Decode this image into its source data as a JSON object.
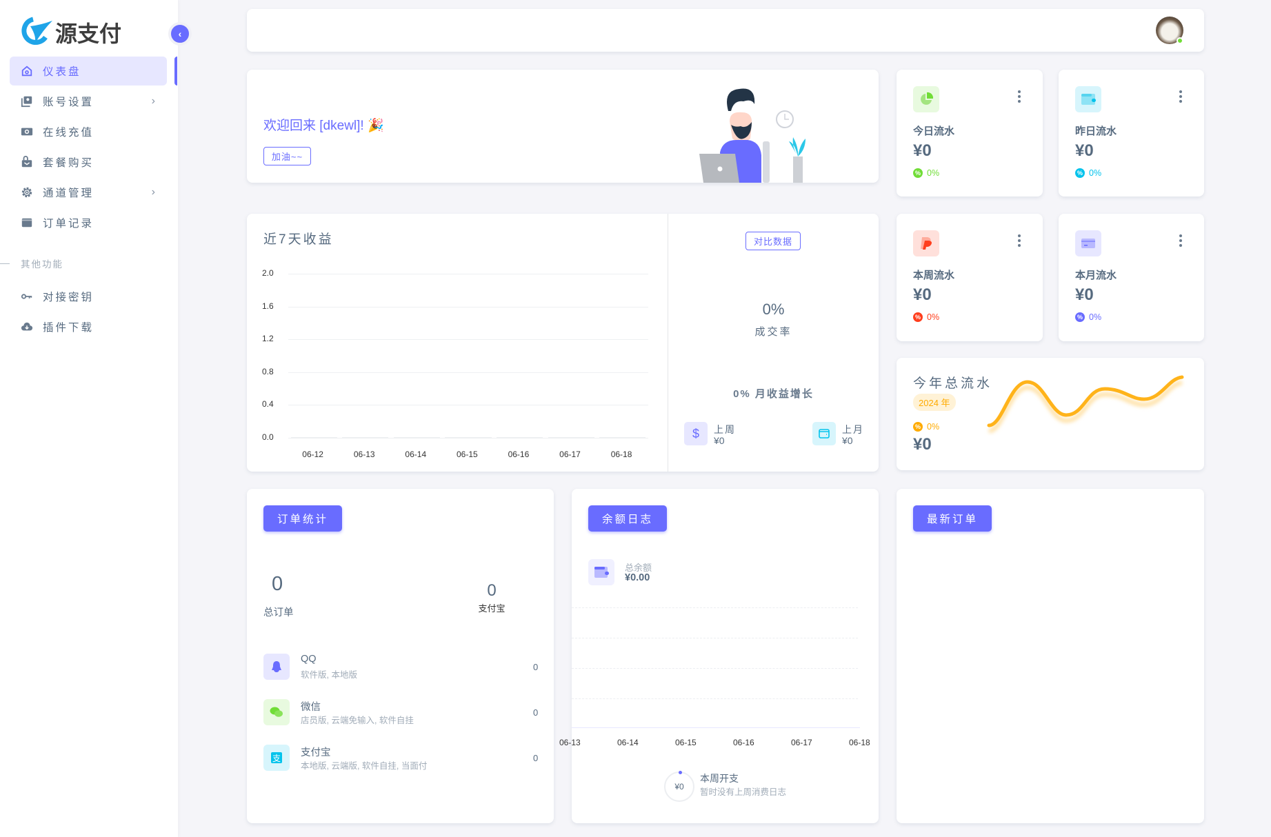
{
  "sidebar": {
    "logo_text": "源支付",
    "items": [
      {
        "label": "仪表盘",
        "icon": "home-icon",
        "active": true
      },
      {
        "label": "账号设置",
        "icon": "account-icon",
        "has_children": true
      },
      {
        "label": "在线充值",
        "icon": "money-icon"
      },
      {
        "label": "套餐购买",
        "icon": "shopping-bag-icon"
      },
      {
        "label": "通道管理",
        "icon": "gear-icon",
        "has_children": true
      },
      {
        "label": "订单记录",
        "icon": "wallet-icon"
      }
    ],
    "section_label": "其他功能",
    "other_items": [
      {
        "label": "对接密钥",
        "icon": "key-icon"
      },
      {
        "label": "插件下载",
        "icon": "cloud-download-icon"
      }
    ]
  },
  "welcome": {
    "title": "欢迎回来 [dkewl]! 🎉",
    "button": "加油~~"
  },
  "stats": [
    {
      "label": "今日流水",
      "value": "¥0",
      "percent": "0%",
      "color": "#71dd37",
      "bg": "#e8fadf",
      "icon": "pie-chart-icon"
    },
    {
      "label": "昨日流水",
      "value": "¥0",
      "percent": "0%",
      "color": "#03c3ec",
      "bg": "#d7f5fc",
      "icon": "wallet-icon"
    },
    {
      "label": "本周流水",
      "value": "¥0",
      "percent": "0%",
      "color": "#ff3e1d",
      "bg": "#ffe0db",
      "icon": "paypal-icon"
    },
    {
      "label": "本月流水",
      "value": "¥0",
      "percent": "0%",
      "color": "#696cff",
      "bg": "#e7e7ff",
      "icon": "credit-card-icon"
    }
  ],
  "revenue": {
    "compare_button": "对比数据",
    "rate_value": "0%",
    "rate_label": "成交率",
    "growth": "0% 月收益增长",
    "last_week": {
      "label": "上周",
      "value": "¥0"
    },
    "last_month": {
      "label": "上月",
      "value": "¥0"
    }
  },
  "year": {
    "title": "今年总流水",
    "badge": "2024 年",
    "percent": "0%",
    "value": "¥0",
    "color": "#ffab00"
  },
  "chart_data": [
    {
      "type": "bar",
      "title": "近7天收益",
      "categories": [
        "06-12",
        "06-13",
        "06-14",
        "06-15",
        "06-16",
        "06-17",
        "06-18"
      ],
      "values": [
        0,
        0,
        0,
        0,
        0,
        0,
        0
      ],
      "ylim": [
        0,
        2.0
      ],
      "yticks": [
        "0.0",
        "0.4",
        "0.8",
        "1.2",
        "1.6",
        "2.0"
      ],
      "grid": true
    },
    {
      "type": "line",
      "categories": [
        "06-13",
        "06-14",
        "06-15",
        "06-16",
        "06-17",
        "06-18"
      ],
      "values": [
        0,
        0,
        0,
        0,
        0,
        0
      ],
      "grid": true
    }
  ],
  "orders": {
    "button": "订单统计",
    "total_value": "0",
    "total_label": "总订单",
    "alipay_value": "0",
    "alipay_label": "支付宝",
    "channels": [
      {
        "name": "QQ",
        "desc": "软件版, 本地版",
        "count": "0",
        "icon": "qq-icon",
        "color": "#696cff",
        "bg": "#e7e7ff"
      },
      {
        "name": "微信",
        "desc": "店员版, 云端免输入, 软件自挂",
        "count": "0",
        "icon": "wechat-icon",
        "color": "#71dd37",
        "bg": "#e8fadf"
      },
      {
        "name": "支付宝",
        "desc": "本地版, 云端版, 软件自挂, 当面付",
        "count": "0",
        "icon": "alipay-icon",
        "color": "#03c3ec",
        "bg": "#d7f5fc"
      }
    ]
  },
  "balance": {
    "button": "余额日志",
    "label": "总余额",
    "value": "¥0.00",
    "week_title": "本周开支",
    "week_desc": "暂时没有上周消费日志",
    "week_value": "¥0"
  },
  "latest": {
    "button": "最新订单"
  }
}
